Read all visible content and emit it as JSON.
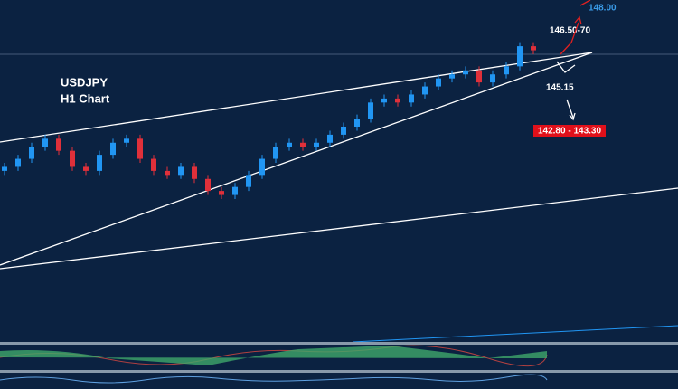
{
  "chart_data": {
    "type": "candlestick",
    "title": "USDJPY",
    "subtitle": "H1 Chart",
    "annotations": [
      "148.00",
      "146.50-70",
      "145.15",
      "142.80 - 143.30"
    ],
    "ylim": [
      139.3,
      147.85
    ],
    "colors": {
      "up": "#2196f3",
      "down": "#e0303a"
    },
    "open": [
      143.6,
      143.7,
      143.9,
      144.2,
      144.4,
      144.1,
      143.7,
      143.6,
      144.0,
      144.3,
      144.4,
      143.9,
      143.6,
      143.5,
      143.7,
      143.4,
      143.1,
      143.0,
      143.2,
      143.5,
      143.9,
      144.2,
      144.3,
      144.2,
      144.3,
      144.5,
      144.7,
      144.9,
      145.3,
      145.4,
      145.3,
      145.5,
      145.7,
      145.9,
      146.0,
      146.1,
      145.8,
      146.0,
      146.2,
      146.7
    ],
    "high": [
      143.8,
      144.0,
      144.3,
      144.5,
      144.5,
      144.2,
      143.8,
      144.1,
      144.4,
      144.5,
      144.5,
      144.0,
      143.7,
      143.8,
      143.8,
      143.5,
      143.2,
      143.3,
      143.6,
      144.0,
      144.3,
      144.4,
      144.4,
      144.4,
      144.6,
      144.8,
      145.0,
      145.4,
      145.5,
      145.5,
      145.6,
      145.8,
      146.0,
      146.1,
      146.2,
      146.2,
      146.1,
      146.3,
      146.8,
      146.8
    ],
    "low": [
      143.5,
      143.6,
      143.8,
      144.1,
      144.0,
      143.6,
      143.5,
      143.5,
      143.9,
      144.2,
      143.8,
      143.5,
      143.4,
      143.4,
      143.3,
      143.0,
      142.9,
      142.9,
      143.1,
      143.4,
      143.8,
      144.1,
      144.1,
      144.1,
      144.2,
      144.4,
      144.6,
      144.8,
      145.2,
      145.2,
      145.2,
      145.4,
      145.6,
      145.8,
      145.9,
      145.7,
      145.7,
      145.9,
      146.1,
      146.5
    ],
    "close": [
      143.7,
      143.9,
      144.2,
      144.4,
      144.1,
      143.7,
      143.6,
      144.0,
      144.3,
      144.4,
      143.9,
      143.6,
      143.5,
      143.7,
      143.4,
      143.1,
      143.0,
      143.2,
      143.5,
      143.9,
      144.2,
      144.3,
      144.2,
      144.3,
      144.5,
      144.7,
      144.9,
      145.3,
      145.4,
      145.3,
      145.5,
      145.7,
      145.9,
      146.0,
      146.1,
      145.8,
      146.0,
      146.2,
      146.7,
      146.6
    ]
  }
}
